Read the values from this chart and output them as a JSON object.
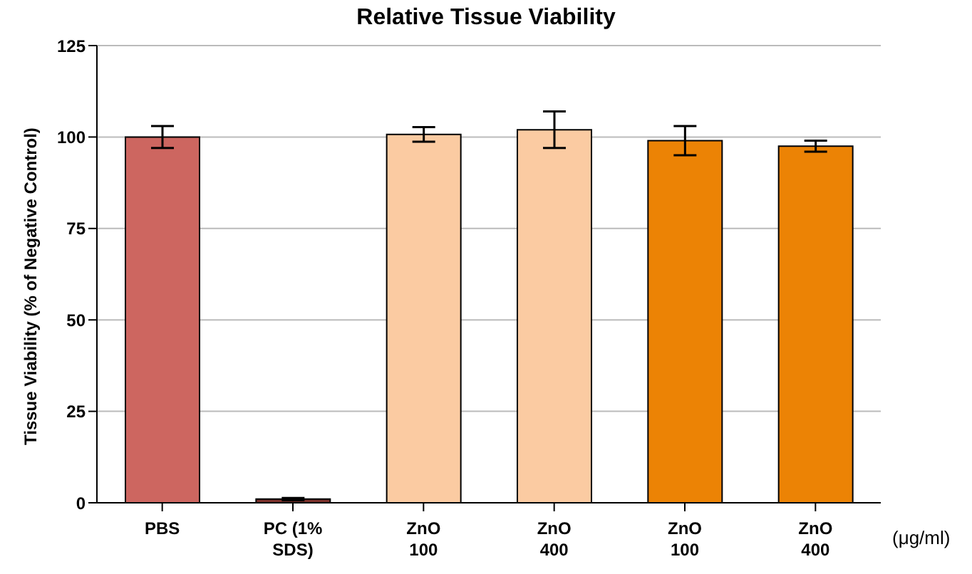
{
  "chart_data": {
    "type": "bar",
    "title": "Relative Tissue Viability",
    "ylabel": "Tissue Viability (% of Negative Control)",
    "xlabel": "(μg/ml)",
    "categories": [
      "PBS",
      "PC (1% SDS)",
      "ZnO 100",
      "ZnO 400",
      "ZnO 100",
      "ZnO 400"
    ],
    "values": [
      100,
      1,
      100.7,
      102,
      99,
      97.5
    ],
    "errors": [
      3,
      0.3,
      2,
      5,
      4,
      1.5
    ],
    "colors": [
      "#cd6660",
      "#7a2e28",
      "#fbcba2",
      "#fbcba2",
      "#ec8305",
      "#ec8305"
    ],
    "ylim": [
      0,
      125
    ],
    "yticks": [
      0,
      25,
      50,
      75,
      100,
      125
    ],
    "grid": "y"
  }
}
